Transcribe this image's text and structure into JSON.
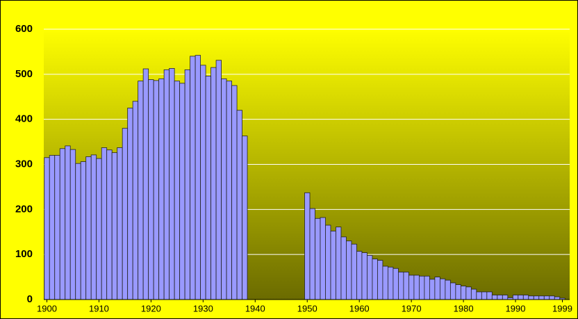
{
  "chart_data": {
    "type": "bar",
    "x": [
      1900,
      1901,
      1902,
      1903,
      1904,
      1905,
      1906,
      1907,
      1908,
      1909,
      1910,
      1911,
      1912,
      1913,
      1914,
      1915,
      1916,
      1917,
      1918,
      1919,
      1920,
      1921,
      1922,
      1923,
      1924,
      1925,
      1926,
      1927,
      1928,
      1929,
      1930,
      1931,
      1932,
      1933,
      1934,
      1935,
      1936,
      1937,
      1938,
      1939,
      1940,
      1941,
      1942,
      1943,
      1944,
      1945,
      1946,
      1947,
      1948,
      1949,
      1950,
      1951,
      1952,
      1953,
      1954,
      1955,
      1956,
      1957,
      1958,
      1959,
      1960,
      1961,
      1962,
      1963,
      1964,
      1965,
      1966,
      1967,
      1968,
      1969,
      1970,
      1971,
      1972,
      1973,
      1974,
      1975,
      1976,
      1977,
      1978,
      1979,
      1980,
      1981,
      1982,
      1983,
      1984,
      1985,
      1986,
      1987,
      1988,
      1989,
      1990,
      1991,
      1992,
      1993,
      1994,
      1995,
      1996,
      1997,
      1998,
      1999
    ],
    "values": [
      315,
      320,
      320,
      335,
      341,
      333,
      302,
      306,
      317,
      321,
      313,
      337,
      332,
      326,
      337,
      380,
      425,
      440,
      485,
      512,
      488,
      486,
      490,
      510,
      513,
      485,
      480,
      510,
      540,
      542,
      520,
      496,
      515,
      531,
      490,
      485,
      475,
      420,
      363,
      null,
      null,
      null,
      null,
      null,
      null,
      null,
      null,
      null,
      null,
      null,
      237,
      202,
      180,
      182,
      165,
      152,
      161,
      139,
      130,
      123,
      107,
      104,
      98,
      90,
      87,
      74,
      72,
      69,
      61,
      61,
      54,
      54,
      52,
      52,
      45,
      50,
      46,
      43,
      37,
      33,
      30,
      28,
      23,
      17,
      17,
      17,
      10,
      10,
      10,
      4,
      10,
      10,
      10,
      8,
      8,
      8,
      8,
      8,
      6,
      3
    ],
    "color": "#9999ff",
    "xlim": [
      1899.4,
      2000.4
    ],
    "xticks": [
      1900,
      1910,
      1920,
      1930,
      1940,
      1950,
      1960,
      1970,
      1980,
      1990,
      1999
    ],
    "ylim": [
      0,
      600
    ],
    "yticks": [
      0,
      100,
      200,
      300,
      400,
      500,
      600
    ],
    "grid": true
  }
}
